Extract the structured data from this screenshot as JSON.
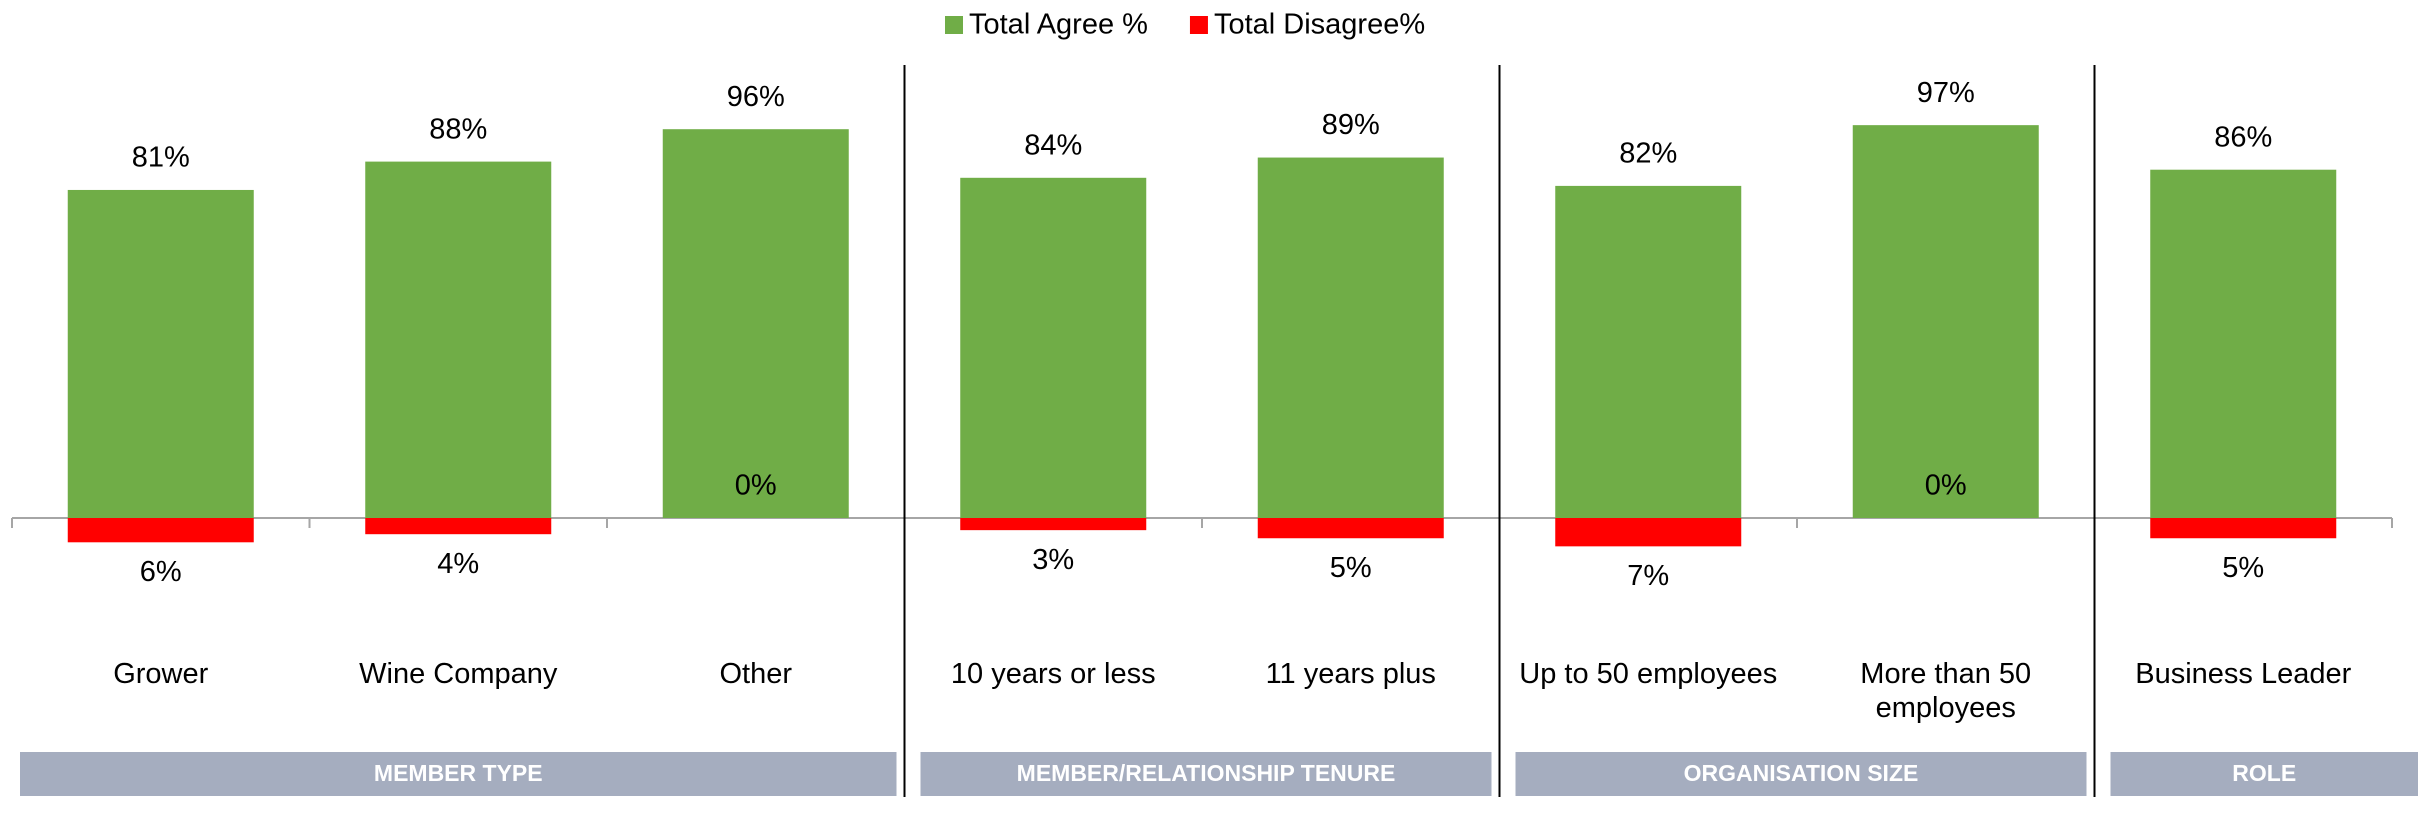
{
  "chart_data": {
    "type": "bar",
    "groups": [
      {
        "label": "MEMBER TYPE",
        "categories": [
          "Grower",
          "Wine Company",
          "Other"
        ]
      },
      {
        "label": "MEMBER/RELATIONSHIP TENURE",
        "categories": [
          "10 years or less",
          "11 years plus"
        ]
      },
      {
        "label": "ORGANISATION SIZE",
        "categories": [
          "Up to 50 employees",
          "More than 50 employees"
        ]
      },
      {
        "label": "ROLE",
        "categories": [
          "Business Leader"
        ]
      }
    ],
    "series": [
      {
        "name": "Total Agree %",
        "color": "#70ad47",
        "values": [
          81,
          88,
          96,
          84,
          89,
          82,
          97,
          86
        ],
        "value_labels": [
          "81%",
          "88%",
          "96%",
          "84%",
          "89%",
          "82%",
          "97%",
          "86%"
        ]
      },
      {
        "name": "Total Disagree%",
        "color": "#ff0000",
        "values": [
          -6,
          -4,
          0,
          -3,
          -5,
          -7,
          0,
          -5
        ],
        "value_labels": [
          "6%",
          "4%",
          "0%",
          "3%",
          "5%",
          "7%",
          "0%",
          "5%"
        ]
      }
    ],
    "legend": "top"
  }
}
